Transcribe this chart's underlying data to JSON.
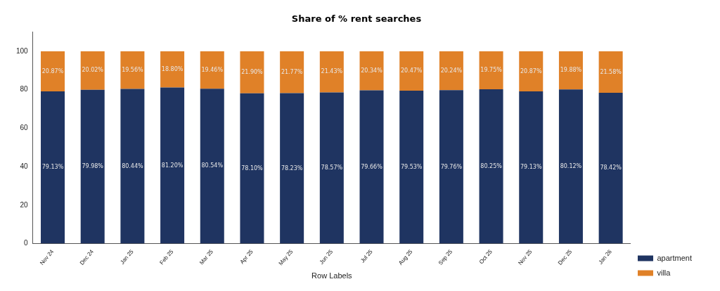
{
  "chart_data": {
    "type": "bar",
    "title": "Share of % rent searches",
    "xlabel": "Row Labels",
    "categories": [
      "Nov 24",
      "Dec 24",
      "Jan 25",
      "Feb 25",
      "Mar 25",
      "Apr 25",
      "May 25",
      "Jun 25",
      "Jul 25",
      "Aug 25",
      "Sep 25",
      "Oct 25",
      "Nov 25",
      "Dec 25",
      "Jan 26"
    ],
    "stacked": true,
    "ylim": [
      0,
      110
    ],
    "yticks": [
      0,
      20,
      40,
      60,
      80,
      100
    ],
    "grid": false,
    "legend": "bottom right",
    "series": [
      {
        "name": "apartment",
        "color": "#1f3461",
        "values": [
          79.13,
          79.98,
          80.44,
          81.2,
          80.54,
          78.1,
          78.23,
          78.57,
          79.66,
          79.53,
          79.76,
          80.25,
          79.13,
          80.12,
          78.42
        ],
        "value_labels": [
          "79.13%",
          "79.98%",
          "80.44%",
          "81.20%",
          "80.54%",
          "78.10%",
          "78.23%",
          "78.57%",
          "79.66%",
          "79.53%",
          "79.76%",
          "80.25%",
          "79.13%",
          "80.12%",
          "78.42%"
        ]
      },
      {
        "name": "villa",
        "color": "#e08128",
        "values": [
          20.87,
          20.02,
          19.56,
          18.8,
          19.46,
          21.9,
          21.77,
          21.43,
          20.34,
          20.47,
          20.24,
          19.75,
          20.87,
          19.88,
          21.58
        ],
        "value_labels": [
          "20.87%",
          "20.02%",
          "19.56%",
          "18.80%",
          "19.46%",
          "21.90%",
          "21.77%",
          "21.43%",
          "20.34%",
          "20.47%",
          "20.24%",
          "19.75%",
          "20.87%",
          "19.88%",
          "21.58%"
        ]
      }
    ]
  }
}
